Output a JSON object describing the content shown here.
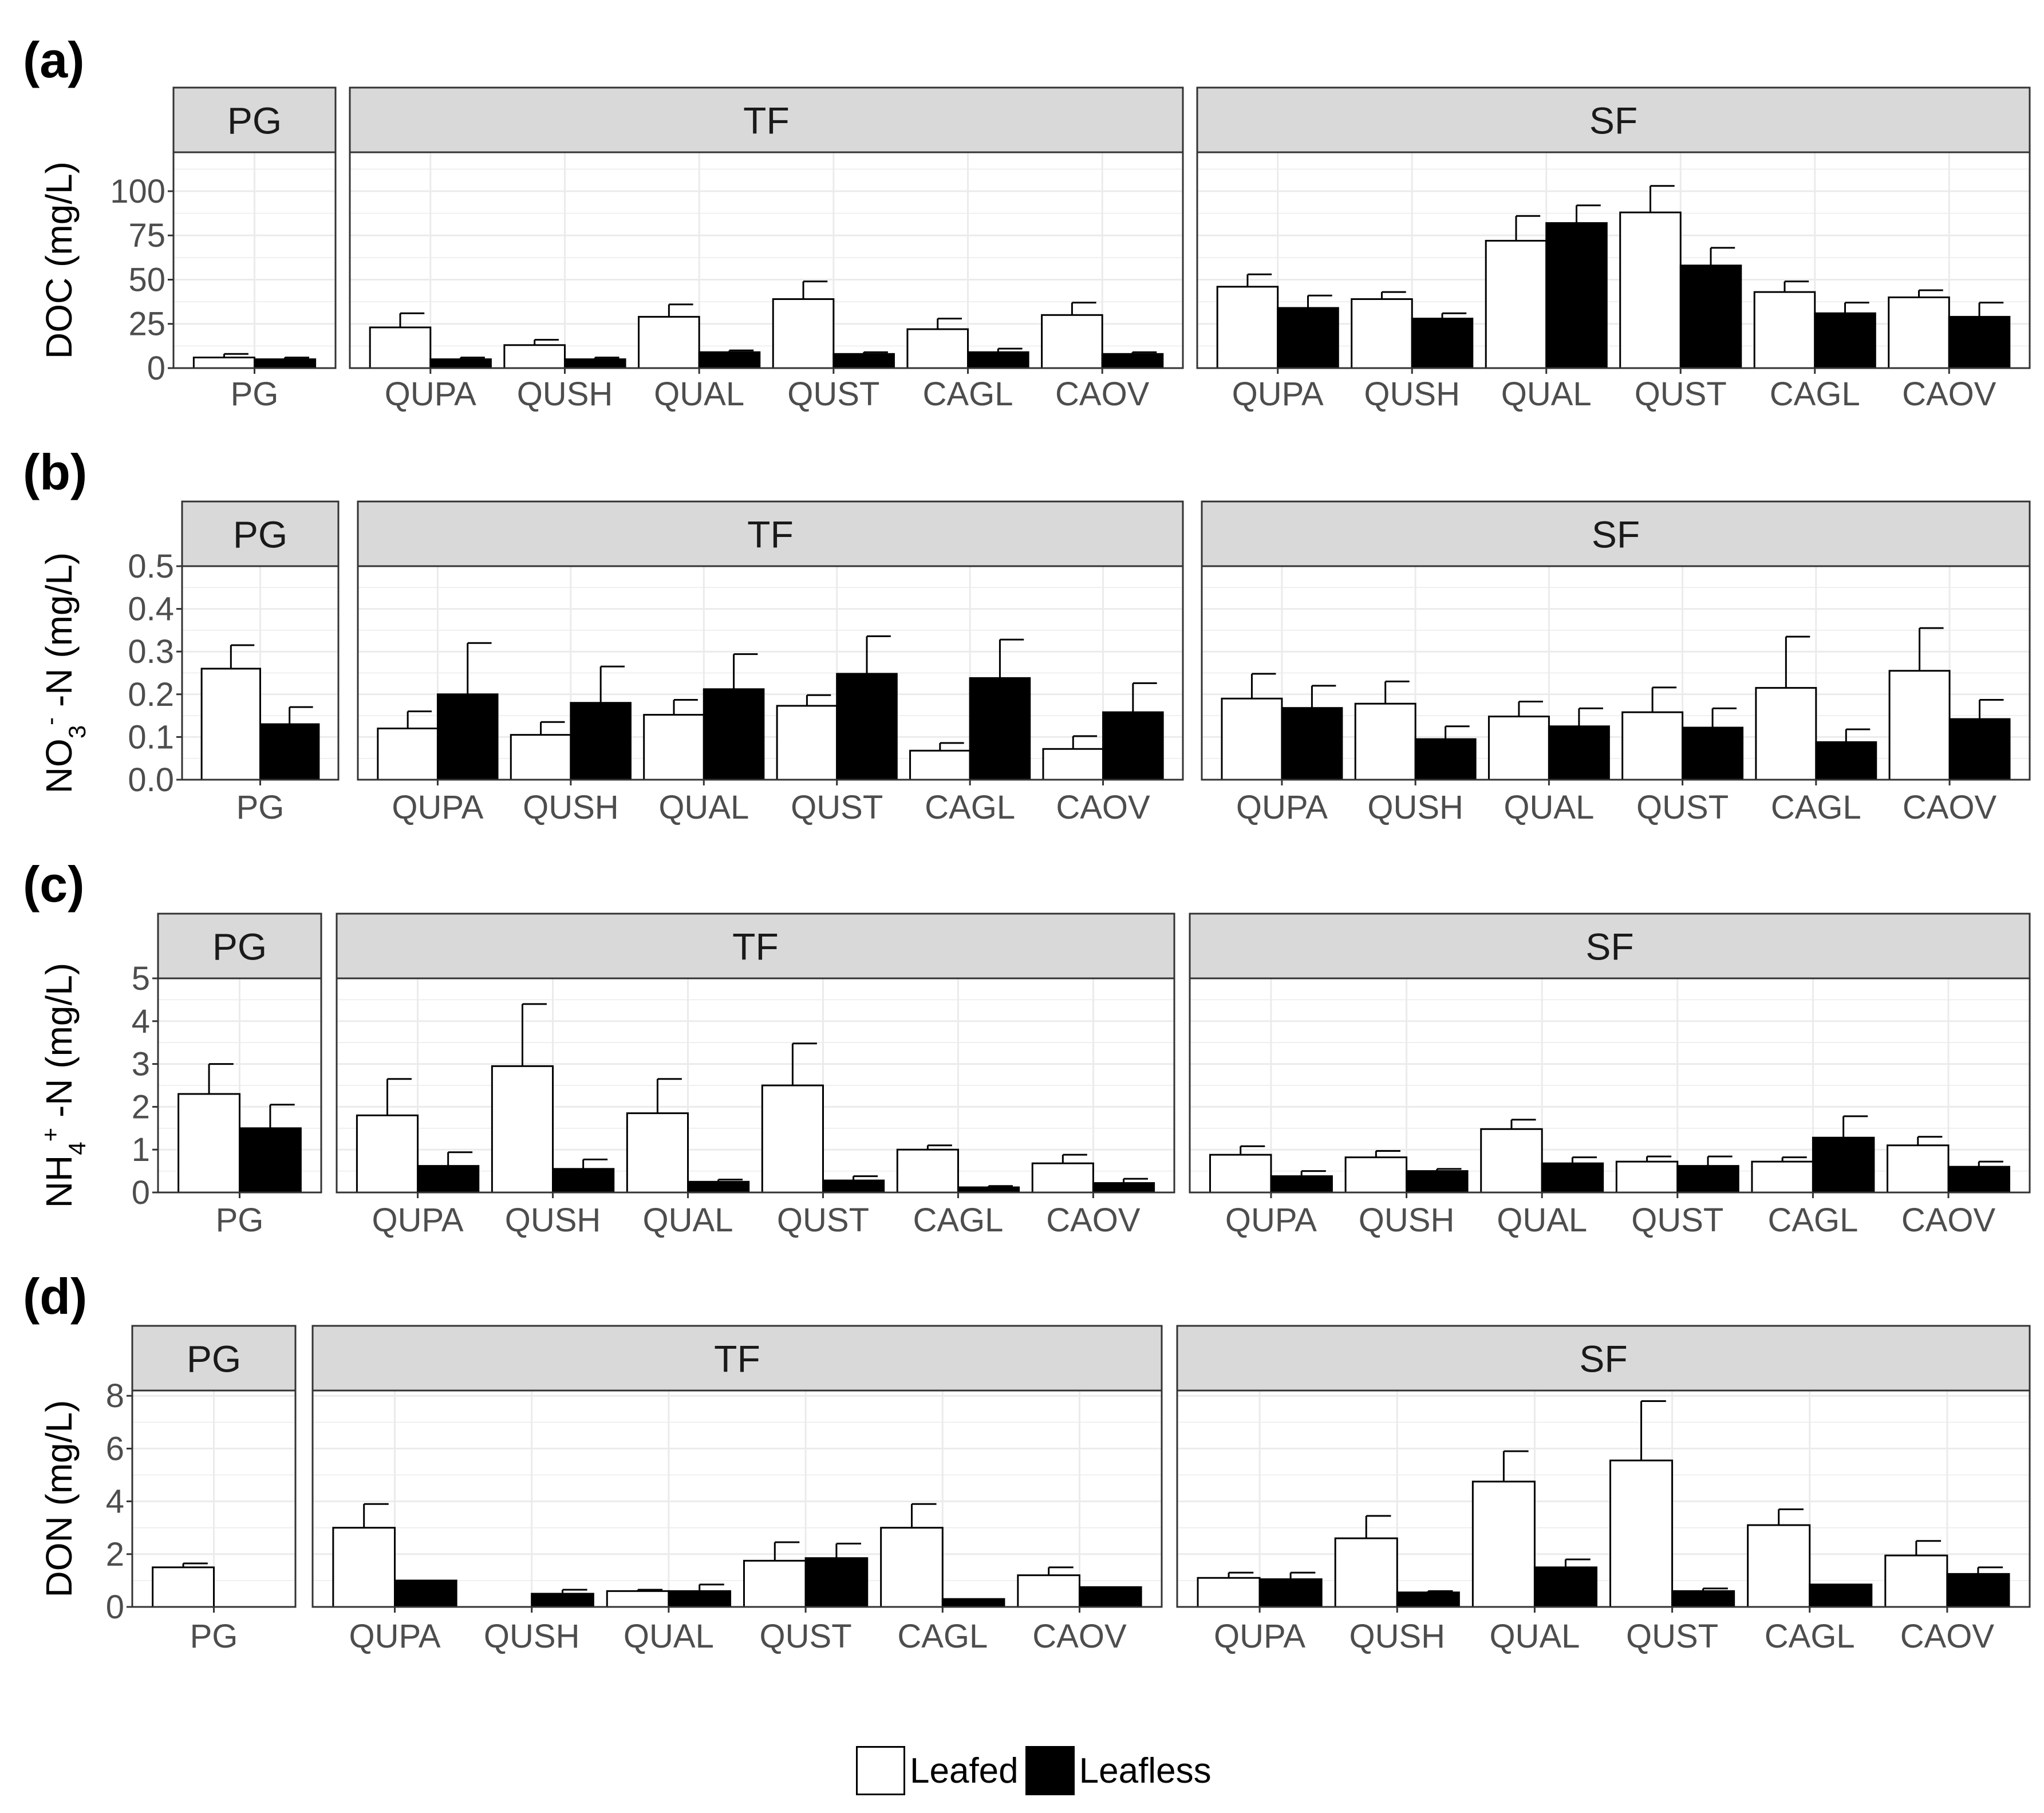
{
  "legend": {
    "leafed": "Leafed",
    "leafless": "Leafless"
  },
  "colors": {
    "leafed": "#ffffff",
    "leafless": "#000000",
    "strip": "#d9d9d9",
    "grid": "#ebebeb",
    "axis_text": "#4d4d4d"
  },
  "chart_data": [
    {
      "type": "bar",
      "panel_label": "(a)",
      "ylabel": "DOC (mg/L)",
      "ylim": [
        0,
        122
      ],
      "yticks": [
        "0",
        "25",
        "50",
        "75",
        "100"
      ],
      "ytick_values": [
        0,
        25,
        50,
        75,
        100
      ],
      "series": [
        "Leafed",
        "Leafless"
      ],
      "facets": [
        {
          "name": "PG",
          "categories": [
            "PG"
          ],
          "leafed": [
            6
          ],
          "leafed_err": [
            2
          ],
          "leafless": [
            5
          ],
          "leafless_err": [
            1
          ]
        },
        {
          "name": "TF",
          "categories": [
            "QUPA",
            "QUSH",
            "QUAL",
            "QUST",
            "CAGL",
            "CAOV"
          ],
          "leafed": [
            23,
            13,
            29,
            39,
            22,
            30
          ],
          "leafed_err": [
            8,
            3,
            7,
            10,
            6,
            7
          ],
          "leafless": [
            5,
            5,
            9,
            8,
            9,
            8
          ],
          "leafless_err": [
            1,
            1,
            1,
            1,
            2,
            1
          ]
        },
        {
          "name": "SF",
          "categories": [
            "QUPA",
            "QUSH",
            "QUAL",
            "QUST",
            "CAGL",
            "CAOV"
          ],
          "leafed": [
            46,
            39,
            72,
            88,
            43,
            40
          ],
          "leafed_err": [
            7,
            4,
            14,
            15,
            6,
            4
          ],
          "leafless": [
            34,
            28,
            82,
            58,
            31,
            29
          ],
          "leafless_err": [
            7,
            3,
            10,
            10,
            6,
            8
          ]
        }
      ]
    },
    {
      "type": "bar",
      "panel_label": "(b)",
      "ylabel": "NO3- -N (mg/L)",
      "ylim": [
        0,
        0.5
      ],
      "yticks": [
        "0.0",
        "0.1",
        "0.2",
        "0.3",
        "0.4",
        "0.5"
      ],
      "ytick_values": [
        0,
        0.1,
        0.2,
        0.3,
        0.4,
        0.5
      ],
      "series": [
        "Leafed",
        "Leafless"
      ],
      "facets": [
        {
          "name": "PG",
          "categories": [
            "PG"
          ],
          "leafed": [
            0.26
          ],
          "leafed_err": [
            0.055
          ],
          "leafless": [
            0.13
          ],
          "leafless_err": [
            0.04
          ]
        },
        {
          "name": "TF",
          "categories": [
            "QUPA",
            "QUSH",
            "QUAL",
            "QUST",
            "CAGL",
            "CAOV"
          ],
          "leafed": [
            0.12,
            0.105,
            0.152,
            0.173,
            0.068,
            0.072
          ],
          "leafed_err": [
            0.04,
            0.03,
            0.035,
            0.025,
            0.018,
            0.03
          ],
          "leafless": [
            0.2,
            0.18,
            0.212,
            0.248,
            0.238,
            0.158
          ],
          "leafless_err": [
            0.12,
            0.085,
            0.082,
            0.088,
            0.09,
            0.068
          ]
        },
        {
          "name": "SF",
          "categories": [
            "QUPA",
            "QUSH",
            "QUAL",
            "QUST",
            "CAGL",
            "CAOV"
          ],
          "leafed": [
            0.19,
            0.178,
            0.148,
            0.158,
            0.215,
            0.255
          ],
          "leafed_err": [
            0.058,
            0.052,
            0.035,
            0.058,
            0.12,
            0.1
          ],
          "leafless": [
            0.168,
            0.095,
            0.125,
            0.122,
            0.088,
            0.142
          ],
          "leafless_err": [
            0.052,
            0.03,
            0.042,
            0.045,
            0.03,
            0.045
          ]
        }
      ]
    },
    {
      "type": "bar",
      "panel_label": "(c)",
      "ylabel": "NH4+ -N (mg/L)",
      "ylim": [
        0,
        5
      ],
      "yticks": [
        "0",
        "1",
        "2",
        "3",
        "4",
        "5"
      ],
      "ytick_values": [
        0,
        1,
        2,
        3,
        4,
        5
      ],
      "series": [
        "Leafed",
        "Leafless"
      ],
      "facets": [
        {
          "name": "PG",
          "categories": [
            "PG"
          ],
          "leafed": [
            2.3
          ],
          "leafed_err": [
            0.7
          ],
          "leafless": [
            1.5
          ],
          "leafless_err": [
            0.55
          ]
        },
        {
          "name": "TF",
          "categories": [
            "QUPA",
            "QUSH",
            "QUAL",
            "QUST",
            "CAGL",
            "CAOV"
          ],
          "leafed": [
            1.8,
            2.95,
            1.85,
            2.5,
            1.0,
            0.68
          ],
          "leafed_err": [
            0.85,
            1.45,
            0.8,
            0.98,
            0.1,
            0.2
          ],
          "leafless": [
            0.62,
            0.55,
            0.25,
            0.28,
            0.12,
            0.22
          ],
          "leafless_err": [
            0.32,
            0.22,
            0.05,
            0.1,
            0.03,
            0.1
          ]
        },
        {
          "name": "SF",
          "categories": [
            "QUPA",
            "QUSH",
            "QUAL",
            "QUST",
            "CAGL",
            "CAOV"
          ],
          "leafed": [
            0.88,
            0.82,
            1.48,
            0.72,
            0.72,
            1.1
          ],
          "leafed_err": [
            0.2,
            0.15,
            0.22,
            0.12,
            0.1,
            0.2
          ],
          "leafless": [
            0.38,
            0.5,
            0.68,
            0.62,
            1.28,
            0.6
          ],
          "leafless_err": [
            0.12,
            0.05,
            0.14,
            0.22,
            0.5,
            0.12
          ]
        }
      ]
    },
    {
      "type": "bar",
      "panel_label": "(d)",
      "ylabel": "DON (mg/L)",
      "ylim": [
        0,
        8.2
      ],
      "yticks": [
        "0",
        "2",
        "4",
        "6",
        "8"
      ],
      "ytick_values": [
        0,
        2,
        4,
        6,
        8
      ],
      "series": [
        "Leafed",
        "Leafless"
      ],
      "facets": [
        {
          "name": "PG",
          "categories": [
            "PG"
          ],
          "leafed": [
            1.5
          ],
          "leafed_err": [
            0.15
          ],
          "leafless": [
            0
          ],
          "leafless_err": [
            0
          ]
        },
        {
          "name": "TF",
          "categories": [
            "QUPA",
            "QUSH",
            "QUAL",
            "QUST",
            "CAGL",
            "CAOV"
          ],
          "leafed": [
            3.0,
            0,
            0.6,
            1.75,
            3.0,
            1.2
          ],
          "leafed_err": [
            0.9,
            0,
            0.05,
            0.7,
            0.9,
            0.3
          ],
          "leafless": [
            1.0,
            0.5,
            0.6,
            1.85,
            0.3,
            0.75
          ],
          "leafless_err": [
            0,
            0.15,
            0.25,
            0.55,
            0,
            0
          ]
        },
        {
          "name": "SF",
          "categories": [
            "QUPA",
            "QUSH",
            "QUAL",
            "QUST",
            "CAGL",
            "CAOV"
          ],
          "leafed": [
            1.1,
            2.6,
            4.75,
            5.55,
            3.1,
            1.95
          ],
          "leafed_err": [
            0.2,
            0.85,
            1.15,
            2.25,
            0.6,
            0.55
          ],
          "leafless": [
            1.05,
            0.55,
            1.5,
            0.6,
            0.85,
            1.25
          ],
          "leafless_err": [
            0.25,
            0.05,
            0.3,
            0.1,
            0,
            0.25
          ]
        }
      ]
    }
  ]
}
